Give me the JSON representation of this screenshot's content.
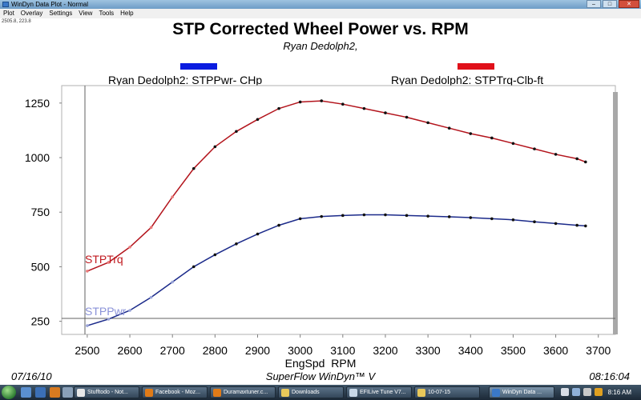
{
  "window": {
    "title": "WinDyn Data Plot - Normal",
    "controls": [
      "–",
      "□",
      "✕"
    ]
  },
  "menu": [
    "Plot",
    "Overlay",
    "Settings",
    "View",
    "Tools",
    "Help"
  ],
  "cursor_readout": "2505.8, 223.8",
  "chart": {
    "title": "STP Corrected Wheel Power vs. RPM",
    "subtitle": "Ryan Dedolph2,",
    "footer_left": "07/16/10",
    "footer_center": "SuperFlow WinDyn™ V",
    "footer_right": "08:16:04"
  },
  "chart_data": {
    "type": "line",
    "title": "STP Corrected Wheel Power vs. RPM",
    "subtitle": "Ryan Dedolph2,",
    "xlabel": "EngSpd  RPM",
    "ylabel": "",
    "xlim": [
      2440,
      3740
    ],
    "ylim": [
      190,
      1330
    ],
    "xticks": [
      2500,
      2600,
      2700,
      2800,
      2900,
      3000,
      3100,
      3200,
      3300,
      3400,
      3500,
      3600,
      3700
    ],
    "yticks": [
      250,
      500,
      750,
      1000,
      1250
    ],
    "legend_position": "top",
    "series": [
      {
        "name": "Ryan Dedolph2: STPTrq-Clb-ft",
        "short_label": "STPTrq",
        "color": "#e0101a",
        "line_color": "#b3141c",
        "x": [
          2500,
          2550,
          2600,
          2650,
          2700,
          2750,
          2800,
          2850,
          2900,
          2950,
          3000,
          3050,
          3100,
          3150,
          3200,
          3250,
          3300,
          3350,
          3400,
          3450,
          3500,
          3550,
          3600,
          3650,
          3670
        ],
        "values": [
          480,
          520,
          590,
          680,
          820,
          950,
          1050,
          1120,
          1175,
          1225,
          1255,
          1260,
          1245,
          1225,
          1205,
          1185,
          1160,
          1135,
          1110,
          1090,
          1065,
          1040,
          1015,
          995,
          980
        ]
      },
      {
        "name": "Ryan Dedolph2: STPPwr- CHp",
        "short_label": "STPPwr",
        "color": "#0a1ce0",
        "line_color": "#1b2a8a",
        "x": [
          2500,
          2550,
          2600,
          2650,
          2700,
          2750,
          2800,
          2850,
          2900,
          2950,
          3000,
          3050,
          3100,
          3150,
          3200,
          3250,
          3300,
          3350,
          3400,
          3450,
          3500,
          3550,
          3600,
          3650,
          3670
        ],
        "values": [
          230,
          260,
          300,
          360,
          430,
          500,
          555,
          605,
          650,
          690,
          720,
          730,
          735,
          738,
          738,
          735,
          732,
          729,
          725,
          720,
          715,
          706,
          698,
          690,
          687
        ]
      }
    ]
  },
  "taskbar": {
    "buttons": [
      {
        "label": "Stufftodo - Not...",
        "icon_color": "#e8e8e8",
        "active": false
      },
      {
        "label": "Facebook - Moz...",
        "icon_color": "#e07b18",
        "active": false
      },
      {
        "label": "Duramaxtuner.c...",
        "icon_color": "#e07b18",
        "active": false
      },
      {
        "label": "Downloads",
        "icon_color": "#e8c85a",
        "active": false
      },
      {
        "label": "EFILive Tune V7...",
        "icon_color": "#c8d8e8",
        "active": false
      },
      {
        "label": "10-07-15",
        "icon_color": "#e8c85a",
        "active": false
      },
      {
        "label": "WinDyn Data ...",
        "icon_color": "#3a78c8",
        "active": true
      }
    ],
    "clock": "8:16 AM"
  }
}
